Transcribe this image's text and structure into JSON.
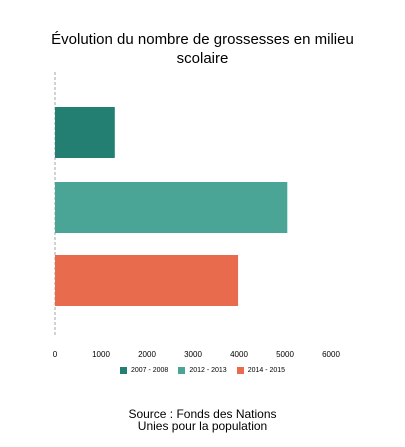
{
  "title_line1": "Évolution du nombre de grossesses en milieu",
  "title_line2": "scolaire",
  "source_line1": "Source : Fonds des Nations",
  "source_line2": "Unies pour la population",
  "chart_data": {
    "type": "bar",
    "orientation": "horizontal",
    "categories": [
      "2007 - 2008",
      "2012 - 2013",
      "2014 - 2015"
    ],
    "values": [
      1300,
      5050,
      3980
    ],
    "colors": [
      "#237f72",
      "#4aa596",
      "#e96b4e"
    ],
    "xlim": [
      0,
      6000
    ],
    "xticks": [
      "0",
      "1000",
      "2000",
      "3000",
      "4000",
      "5000",
      "6000"
    ],
    "grid": false,
    "legend_position": "bottom"
  }
}
